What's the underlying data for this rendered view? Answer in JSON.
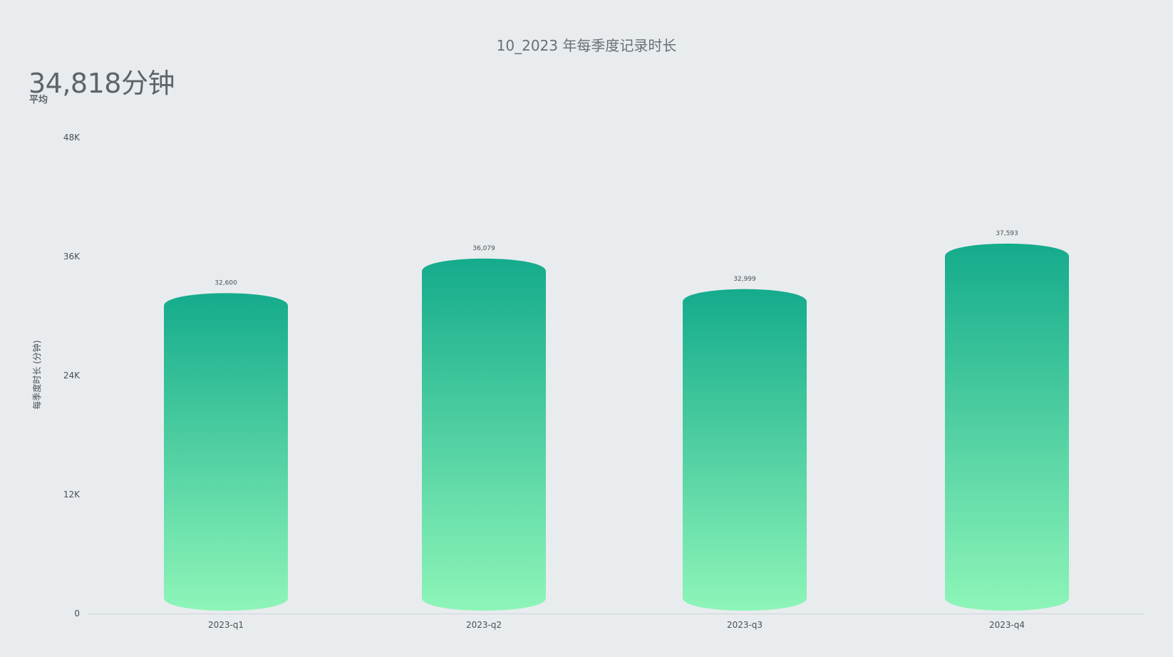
{
  "header": {
    "title": "10_2023 年每季度记录时长",
    "kpi_value": "34,818分钟",
    "kpi_label": "平均"
  },
  "chart_data": {
    "type": "bar",
    "title": "10_2023 年每季度记录时长",
    "xlabel": "",
    "ylabel": "每季度时长 (分钟)",
    "categories": [
      "2023-q1",
      "2023-q2",
      "2023-q3",
      "2023-q4"
    ],
    "values": [
      32600,
      36079,
      32999,
      37593
    ],
    "data_labels": [
      "32,600",
      "36,079",
      "32,999",
      "37,593"
    ],
    "ylim": [
      0,
      48000
    ],
    "yticks": [
      0,
      12000,
      24000,
      36000,
      48000
    ],
    "ytick_labels": [
      "0",
      "12K",
      "24K",
      "36K",
      "48K"
    ],
    "grid": false,
    "legend": "none",
    "colors": {
      "bar_top": "#14ab8c",
      "bar_bottom": "#8ef5b8",
      "axis": "#cfd4d8"
    }
  }
}
